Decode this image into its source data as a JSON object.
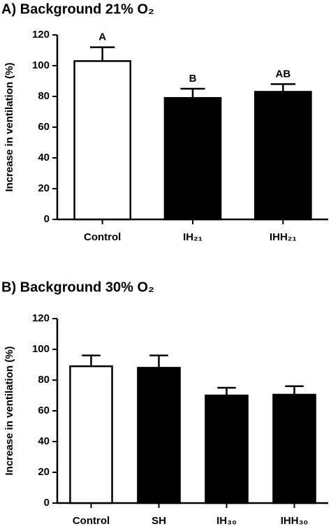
{
  "chart_data": [
    {
      "type": "bar",
      "title": "A) Background 21% O₂",
      "y_label": "Increase in ventilation (%)",
      "categories": [
        "Control",
        "IH₂₁",
        "IHH₂₁"
      ],
      "values": [
        103,
        79,
        83
      ],
      "errors": [
        9,
        6,
        5
      ],
      "colors": [
        "#ffffff",
        "#000000",
        "#000000"
      ],
      "annotations": [
        "A",
        "B",
        "AB"
      ],
      "ylim": [
        0,
        120
      ],
      "yticks": [
        0,
        20,
        40,
        60,
        80,
        100,
        120
      ]
    },
    {
      "type": "bar",
      "title": "B) Background 30% O₂",
      "y_label": "Increase in ventilation (%)",
      "categories": [
        "Control",
        "SH",
        "IH₃₀",
        "IHH₃₀"
      ],
      "values": [
        89,
        88,
        70,
        70.5
      ],
      "errors": [
        7,
        8,
        5,
        5.5
      ],
      "colors": [
        "#ffffff",
        "#000000",
        "#000000",
        "#000000"
      ],
      "ylim": [
        0,
        120
      ],
      "yticks": [
        0,
        20,
        40,
        60,
        80,
        100,
        120
      ]
    }
  ]
}
